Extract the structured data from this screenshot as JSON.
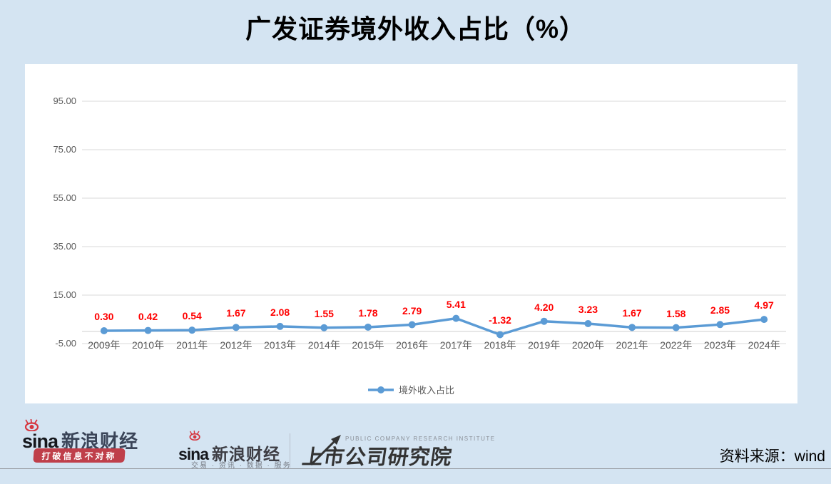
{
  "title": "广发证券境外收入占比（%）",
  "source_label": "资料来源：wind",
  "legend_label": "境外收入占比",
  "chart_data": {
    "type": "line",
    "title": "广发证券境外收入占比（%）",
    "categories": [
      "2009年",
      "2010年",
      "2011年",
      "2012年",
      "2013年",
      "2014年",
      "2015年",
      "2016年",
      "2017年",
      "2018年",
      "2019年",
      "2020年",
      "2021年",
      "2022年",
      "2023年",
      "2024年"
    ],
    "series": [
      {
        "name": "境外收入占比",
        "values": [
          0.3,
          0.42,
          0.54,
          1.67,
          2.08,
          1.55,
          1.78,
          2.79,
          5.41,
          -1.32,
          4.2,
          3.23,
          1.67,
          1.58,
          2.85,
          4.97
        ],
        "color": "#5b9bd5"
      }
    ],
    "data_labels": [
      "0.30",
      "0.42",
      "0.54",
      "1.67",
      "2.08",
      "1.55",
      "1.78",
      "2.79",
      "5.41",
      "-1.32",
      "4.20",
      "3.23",
      "1.67",
      "1.58",
      "2.85",
      "4.97"
    ],
    "xlabel": "",
    "ylabel": "",
    "ylim": [
      -5,
      95
    ],
    "yticks": [
      "95.00",
      "75.00",
      "55.00",
      "35.00",
      "15.00",
      "-5.00"
    ],
    "ytick_values": [
      95,
      75,
      55,
      35,
      15,
      -5
    ],
    "grid": true,
    "legend_position": "bottom",
    "data_label_color": "#ff0000"
  },
  "branding": {
    "sina_wordmark": "sina",
    "sina_finance": "新浪财经",
    "slogan": "打破信息不对称",
    "tagline": "交易 · 资讯 · 数据 · 服务",
    "institute": "上市公司研究院",
    "institute_en": "PUBLIC COMPANY RESEARCH INSTITUTE"
  },
  "colors": {
    "background": "#d4e4f2",
    "panel": "#ffffff",
    "line": "#5b9bd5",
    "gridline": "#d9d9d9",
    "zero_axis": "#cfcfcf",
    "axis_text": "#595959",
    "data_label": "#ff0000",
    "sina_red": "#d6363f",
    "banner_red": "#bf3f4a"
  }
}
